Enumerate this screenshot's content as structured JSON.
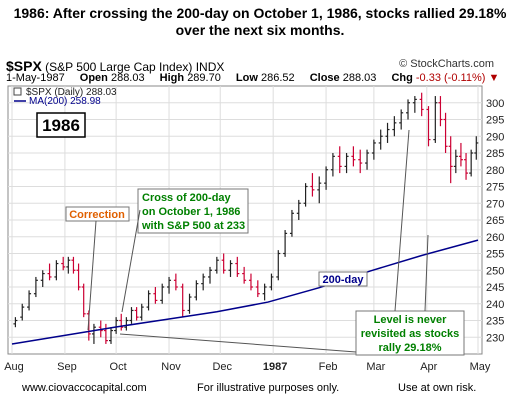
{
  "header": {
    "line1": "1986: After crossing the 200-day on October 1, 1986, stocks rallied 29.18%",
    "line2": "over the next six months."
  },
  "chart_header": {
    "symbol": "$SPX",
    "name": "(S&P 500 Large Cap Index) INDX",
    "source": "© StockCharts.com",
    "date": "1-May-1987",
    "open_label": "Open",
    "open": "288.03",
    "high_label": "High",
    "high": "289.70",
    "low_label": "Low",
    "low": "286.52",
    "close_label": "Close",
    "close": "288.03",
    "chg_label": "Chg",
    "chg": "-0.33 (-0.11%)",
    "legend_price": "$SPX (Daily) 288.03",
    "legend_ma": "MA(200) 258.98"
  },
  "annotations": {
    "year_box": "1986",
    "correction": "Correction",
    "cross_line1": "Cross of 200-day",
    "cross_line2": "on October 1, 1986",
    "cross_line3": "with S&P 500 at 233",
    "ma_label": "200-day",
    "level_line1": "Level is never",
    "level_line2": "revisited as stocks",
    "level_line3": "rally 29.18%",
    "year_1987": "1987"
  },
  "footer": {
    "left": "www.ciovaccocapital.com",
    "center": "For illustrative purposes only.",
    "right": "Use at own risk."
  },
  "colors": {
    "bar_up": "#222222",
    "bar_down": "#cc0033",
    "ma": "#00008b",
    "callout_text": "#008000",
    "correction_text": "#e06000",
    "grid": "#dddddd"
  },
  "chart_data": {
    "type": "ohlc",
    "title": "1986: After crossing the 200-day on October 1, 1986, stocks rallied 29.18% over the next six months.",
    "ylim": [
      225,
      305
    ],
    "y_ticks": [
      230,
      235,
      240,
      245,
      250,
      255,
      260,
      265,
      270,
      275,
      280,
      285,
      290,
      295,
      300
    ],
    "x_ticks": [
      "Aug",
      "Sep",
      "Oct",
      "Nov",
      "Dec",
      "1987",
      "Feb",
      "Mar",
      "Apr",
      "May"
    ],
    "x_tick_day": [
      0,
      31,
      61,
      92,
      122,
      153,
      184,
      212,
      243,
      273
    ],
    "grid": true,
    "series": [
      {
        "name": "$SPX (Daily)",
        "points": [
          [
            2,
            234,
            236,
            233,
            235
          ],
          [
            6,
            236,
            240,
            235,
            239
          ],
          [
            10,
            239,
            244,
            238,
            243
          ],
          [
            14,
            243,
            248,
            242,
            247
          ],
          [
            18,
            247,
            250,
            245,
            249
          ],
          [
            22,
            249,
            252,
            247,
            248
          ],
          [
            26,
            248,
            253,
            247,
            252
          ],
          [
            30,
            252,
            254,
            250,
            251
          ],
          [
            33,
            251,
            254,
            249,
            253
          ],
          [
            36,
            253,
            254,
            249,
            250
          ],
          [
            39,
            250,
            252,
            244,
            245
          ],
          [
            42,
            245,
            246,
            236,
            237
          ],
          [
            45,
            237,
            238,
            229,
            231
          ],
          [
            48,
            231,
            234,
            228,
            233
          ],
          [
            52,
            233,
            235,
            230,
            232
          ],
          [
            55,
            232,
            234,
            228,
            229
          ],
          [
            58,
            229,
            233,
            228,
            232
          ],
          [
            61,
            232,
            236,
            231,
            235
          ],
          [
            64,
            235,
            237,
            232,
            233
          ],
          [
            67,
            233,
            236,
            232,
            235
          ],
          [
            70,
            235,
            239,
            234,
            238
          ],
          [
            73,
            238,
            239,
            235,
            236
          ],
          [
            76,
            236,
            240,
            235,
            239
          ],
          [
            80,
            239,
            244,
            238,
            243
          ],
          [
            84,
            243,
            245,
            240,
            241
          ],
          [
            88,
            241,
            246,
            240,
            245
          ],
          [
            92,
            245,
            248,
            243,
            247
          ],
          [
            96,
            247,
            249,
            244,
            245
          ],
          [
            100,
            245,
            246,
            236,
            238
          ],
          [
            104,
            238,
            243,
            237,
            242
          ],
          [
            108,
            242,
            247,
            241,
            246
          ],
          [
            112,
            246,
            249,
            244,
            248
          ],
          [
            116,
            248,
            251,
            246,
            250
          ],
          [
            120,
            250,
            254,
            249,
            253
          ],
          [
            124,
            253,
            255,
            249,
            250
          ],
          [
            128,
            250,
            253,
            248,
            252
          ],
          [
            132,
            252,
            254,
            248,
            249
          ],
          [
            136,
            249,
            251,
            246,
            247
          ],
          [
            140,
            247,
            249,
            244,
            245
          ],
          [
            144,
            245,
            247,
            242,
            243
          ],
          [
            148,
            243,
            246,
            241,
            245
          ],
          [
            152,
            245,
            249,
            244,
            248
          ],
          [
            156,
            248,
            256,
            247,
            255
          ],
          [
            160,
            255,
            262,
            254,
            261
          ],
          [
            164,
            261,
            268,
            260,
            267
          ],
          [
            168,
            267,
            271,
            265,
            270
          ],
          [
            172,
            270,
            276,
            269,
            275
          ],
          [
            176,
            275,
            279,
            272,
            274
          ],
          [
            180,
            274,
            278,
            270,
            276
          ],
          [
            184,
            276,
            281,
            274,
            280
          ],
          [
            188,
            280,
            285,
            278,
            284
          ],
          [
            192,
            284,
            287,
            279,
            281
          ],
          [
            196,
            281,
            285,
            279,
            284
          ],
          [
            200,
            284,
            287,
            281,
            283
          ],
          [
            204,
            283,
            286,
            279,
            282
          ],
          [
            208,
            282,
            286,
            280,
            285
          ],
          [
            212,
            285,
            289,
            283,
            288
          ],
          [
            216,
            288,
            292,
            286,
            290
          ],
          [
            220,
            290,
            294,
            288,
            292
          ],
          [
            224,
            292,
            296,
            290,
            294
          ],
          [
            228,
            294,
            298,
            292,
            297
          ],
          [
            232,
            297,
            301,
            295,
            300
          ],
          [
            236,
            300,
            302,
            297,
            301
          ],
          [
            240,
            301,
            303,
            296,
            298
          ],
          [
            244,
            298,
            299,
            287,
            289
          ],
          [
            248,
            289,
            302,
            288,
            300
          ],
          [
            251,
            300,
            302,
            293,
            295
          ],
          [
            254,
            295,
            297,
            285,
            287
          ],
          [
            257,
            287,
            290,
            276,
            281
          ],
          [
            260,
            281,
            286,
            279,
            284
          ],
          [
            263,
            284,
            288,
            281,
            283
          ],
          [
            266,
            283,
            285,
            277,
            279
          ],
          [
            269,
            279,
            286,
            278,
            285
          ],
          [
            272,
            285,
            290,
            283,
            288
          ]
        ]
      },
      {
        "name": "MA(200)",
        "x": [
          0,
          30,
          60,
          90,
          120,
          150,
          180,
          210,
          240,
          273
        ],
        "values": [
          228,
          230.5,
          233,
          235.3,
          237.6,
          240.5,
          244.8,
          249.8,
          254.4,
          259
        ]
      }
    ]
  }
}
